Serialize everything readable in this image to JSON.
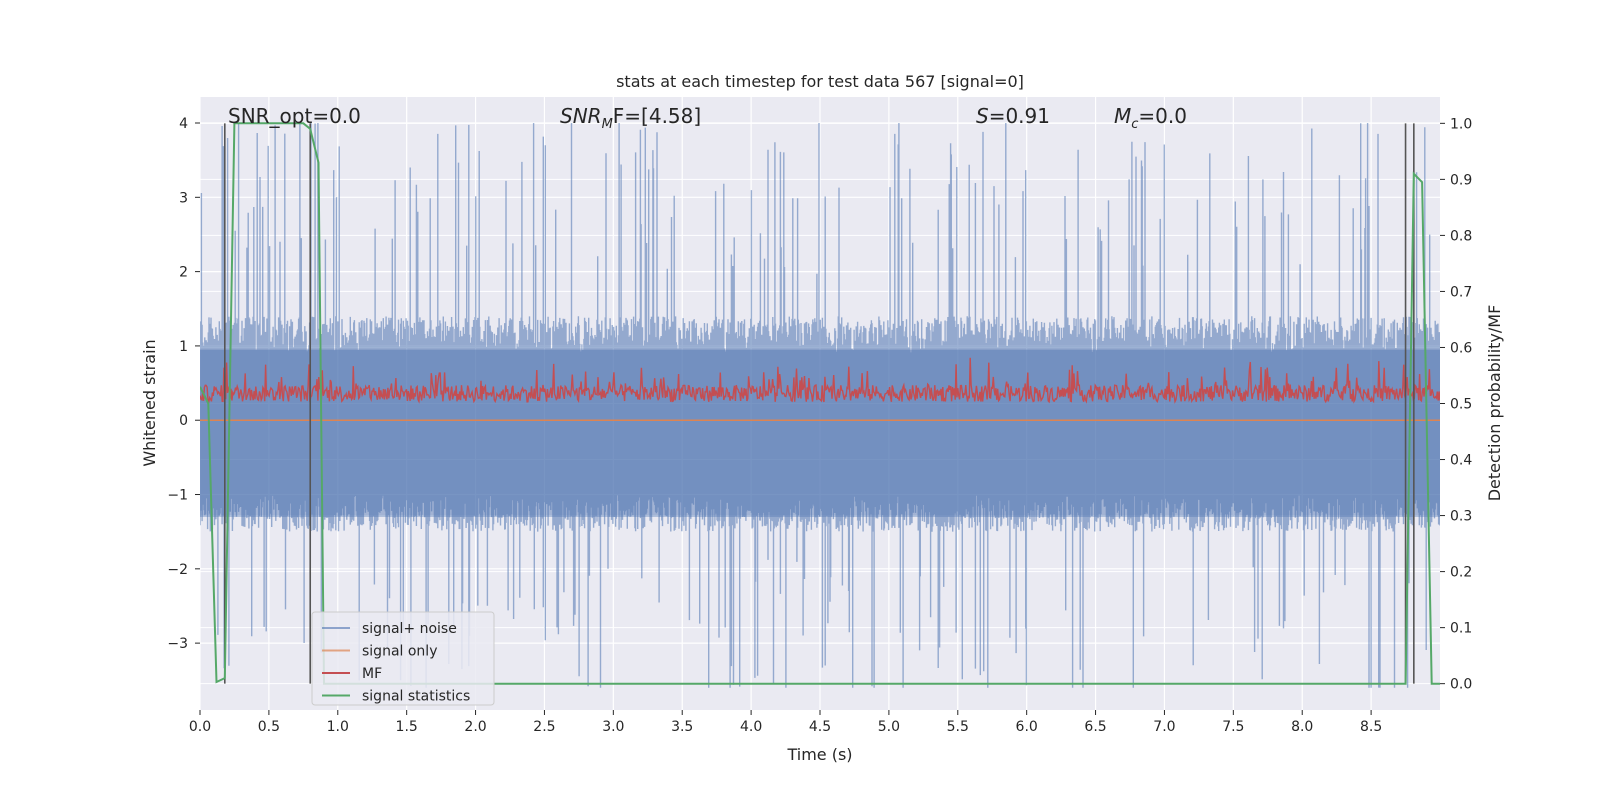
{
  "chart_data": {
    "type": "line",
    "title": "stats at each timestep for test data 567 [signal=0]",
    "xlabel": "Time (s)",
    "ylabel": "Whitened strain",
    "y2label": "Detection probability/MF",
    "xlim": [
      0.0,
      9.0
    ],
    "ylim": [
      -3.9,
      4.35
    ],
    "y2lim": [
      -0.047,
      1.047
    ],
    "x_ticks": [
      "0.0",
      "0.5",
      "1.0",
      "1.5",
      "2.0",
      "2.5",
      "3.0",
      "3.5",
      "4.0",
      "4.5",
      "5.0",
      "5.5",
      "6.0",
      "6.5",
      "7.0",
      "7.5",
      "8.0",
      "8.5"
    ],
    "x_tick_values": [
      0,
      0.5,
      1,
      1.5,
      2,
      2.5,
      3,
      3.5,
      4,
      4.5,
      5,
      5.5,
      6,
      6.5,
      7,
      7.5,
      8,
      8.5
    ],
    "y_ticks": [
      "4",
      "3",
      "2",
      "1",
      "0",
      "−1",
      "−2",
      "−3"
    ],
    "y_tick_values": [
      4,
      3,
      2,
      1,
      0,
      -1,
      -2,
      -3
    ],
    "y2_ticks": [
      "1.0",
      "0.9",
      "0.8",
      "0.7",
      "0.6",
      "0.5",
      "0.4",
      "0.3",
      "0.2",
      "0.1",
      "0.0"
    ],
    "y2_tick_values": [
      1.0,
      0.9,
      0.8,
      0.7,
      0.6,
      0.5,
      0.4,
      0.3,
      0.2,
      0.1,
      0.0
    ],
    "grid": true,
    "legend_position": "bottom-left",
    "annotations": {
      "snr_opt": "SNR_opt=0.0",
      "snr_mf_prefix": "SNR",
      "snr_mf_sub": "M",
      "snr_mf_rest": "F=[4.58]",
      "s_var": "S",
      "s_rest": "=0.91",
      "mc_var": "M",
      "mc_sub": "c",
      "mc_rest": "=0.0"
    },
    "series": [
      {
        "name": "signal+ noise",
        "color": "#4c72b0",
        "style": "dense noise, approx. range -3.6 to 4.0"
      },
      {
        "name": "signal only",
        "color": "#dd8452",
        "values_constant": 0.0
      },
      {
        "name": "MF",
        "color": "#c44e52",
        "axis": "right",
        "style": "noisy band, approx. range 0.5 to 0.58"
      },
      {
        "name": "signal statistics",
        "color": "#55a868",
        "axis": "right",
        "x": [
          0.0,
          0.06,
          0.12,
          0.18,
          0.25,
          0.3,
          0.4,
          0.5,
          0.6,
          0.7,
          0.75,
          0.8,
          0.86,
          0.9,
          1.0,
          2.0,
          3.0,
          4.0,
          5.0,
          6.0,
          7.0,
          8.0,
          8.5,
          8.75,
          8.81,
          8.87,
          8.94,
          9.0
        ],
        "values": [
          0.53,
          0.5,
          0.003,
          0.01,
          1.0,
          1.0,
          1.0,
          1.0,
          1.0,
          1.0,
          1.0,
          0.99,
          0.93,
          0.0,
          0.0,
          0.0,
          0.0,
          0.0,
          0.0,
          0.0,
          0.0,
          0.0,
          0.0,
          0.0,
          0.91,
          0.895,
          0.0,
          0.0
        ]
      }
    ],
    "vertical_markers_x": [
      0.18,
      0.8,
      8.75,
      8.81
    ],
    "marker_color": "#555555"
  }
}
